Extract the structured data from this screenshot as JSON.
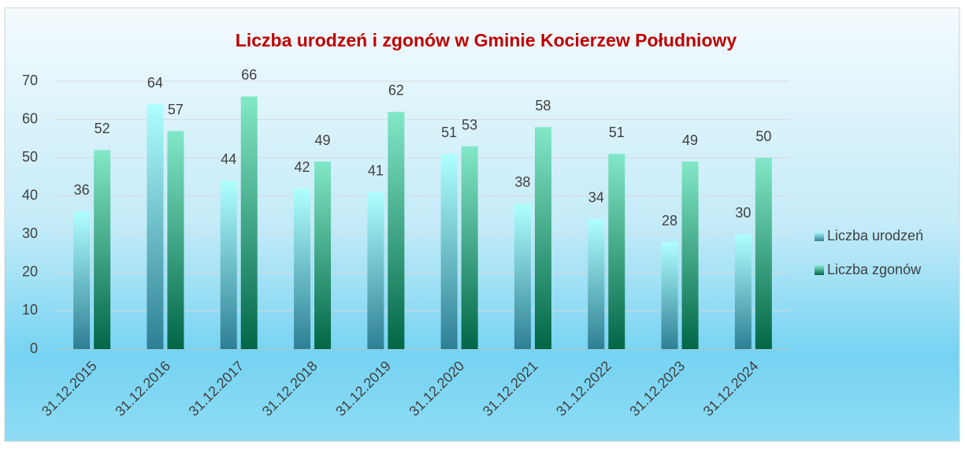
{
  "chart_data": {
    "type": "bar",
    "title": "Liczba urodzeń i zgonów w Gminie Kocierzew Południowy",
    "categories": [
      "31.12.2015",
      "31.12.2016",
      "31.12.2017",
      "31.12.2018",
      "31.12.2019",
      "31.12.2020",
      "31.12.2021",
      "31.12.2022",
      "31.12.2023",
      "31.12.2024"
    ],
    "series": [
      {
        "name": "Liczba urodzeń",
        "color": "#2e7f94",
        "values": [
          36,
          64,
          44,
          42,
          41,
          51,
          38,
          34,
          28,
          30
        ]
      },
      {
        "name": "Liczba zgonów",
        "color": "#006646",
        "values": [
          52,
          57,
          66,
          49,
          62,
          53,
          58,
          51,
          49,
          50
        ]
      }
    ],
    "ylim": [
      0,
      70
    ],
    "yticks": [
      0,
      10,
      20,
      30,
      40,
      50,
      60,
      70
    ],
    "grid": true,
    "legend": "right"
  }
}
